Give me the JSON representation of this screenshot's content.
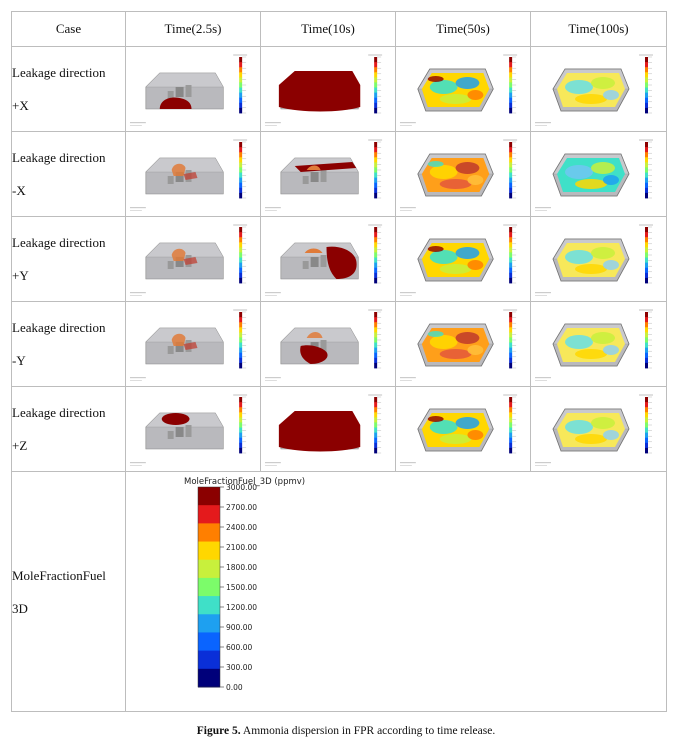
{
  "table": {
    "headers": [
      "Case",
      "Time(2.5s)",
      "Time(10s)",
      "Time(50s)",
      "Time(100s)"
    ],
    "rows": [
      {
        "line1": "Leakage direction",
        "line2": "+X"
      },
      {
        "line1": "Leakage direction",
        "line2": "-X"
      },
      {
        "line1": "Leakage direction",
        "line2": "+Y"
      },
      {
        "line1": "Leakage direction",
        "line2": "-Y"
      },
      {
        "line1": "Leakage direction",
        "line2": "+Z"
      }
    ],
    "legend_row": {
      "line1": "MoleFractionFuel",
      "line2": "3D"
    }
  },
  "legend": {
    "title": "MoleFractionFuel_3D (ppmv)",
    "ticks": [
      "3000.00",
      "2700.00",
      "2400.00",
      "2100.00",
      "1800.00",
      "1500.00",
      "1200.00",
      "900.00",
      "600.00",
      "300.00",
      "0.00"
    ],
    "colors": [
      "#8b0000",
      "#e41a1c",
      "#ff7f00",
      "#ffd700",
      "#c8f03c",
      "#7cfc6a",
      "#3fe0c8",
      "#1ea0f0",
      "#0a64ff",
      "#0a2fd8",
      "#00007a"
    ]
  },
  "caption": {
    "label": "Figure 5.",
    "text": " Ammonia dispersion in FPR according to time release."
  }
}
